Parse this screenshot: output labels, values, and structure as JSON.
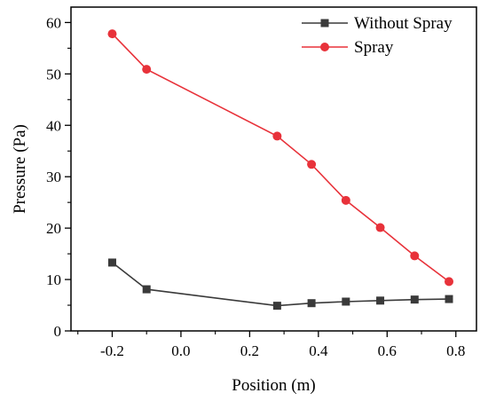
{
  "chart_data": {
    "type": "line",
    "title": "",
    "xlabel": "Position (m)",
    "ylabel": "Pressure (Pa)",
    "xlim": [
      -0.32,
      0.86
    ],
    "ylim": [
      0,
      63
    ],
    "xticks": [
      -0.2,
      0.0,
      0.2,
      0.4,
      0.6,
      0.8
    ],
    "xtick_labels": [
      "-0.2",
      "0.0",
      "0.2",
      "0.4",
      "0.6",
      "0.8"
    ],
    "yticks": [
      0,
      10,
      20,
      30,
      40,
      50,
      60
    ],
    "ytick_labels": [
      "0",
      "10",
      "20",
      "30",
      "40",
      "50",
      "60"
    ],
    "grid": false,
    "legend_position": "top-right",
    "series": [
      {
        "name": "Without Spray",
        "color": "#3a3a3a",
        "marker": "square",
        "x": [
          -0.2,
          -0.1,
          0.28,
          0.38,
          0.48,
          0.58,
          0.68,
          0.78
        ],
        "y": [
          13.3,
          8.1,
          4.9,
          5.4,
          5.7,
          5.9,
          6.1,
          6.2
        ]
      },
      {
        "name": "Spray",
        "color": "#e8323a",
        "marker": "circle",
        "x": [
          -0.2,
          -0.1,
          0.28,
          0.38,
          0.48,
          0.58,
          0.68,
          0.78
        ],
        "y": [
          57.8,
          50.9,
          37.9,
          32.4,
          25.4,
          20.1,
          14.6,
          9.6
        ]
      }
    ]
  }
}
